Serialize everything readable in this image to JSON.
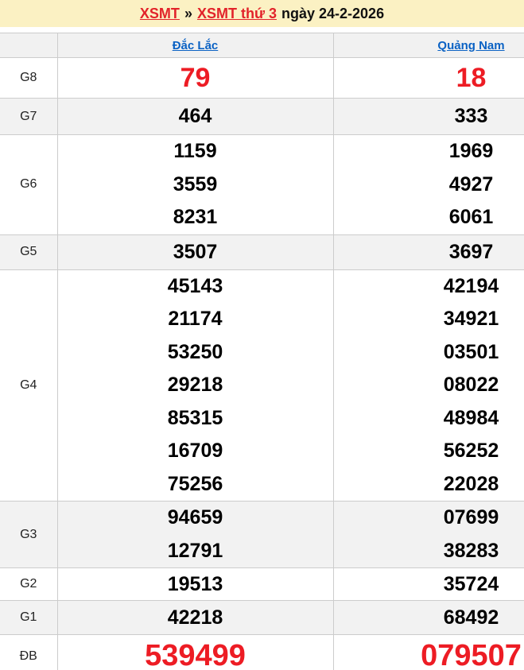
{
  "title": {
    "link1": "XSMT",
    "separator": "»",
    "link2": "XSMT thứ 3",
    "date_text": "ngày 24-2-2026"
  },
  "columns": [
    "Đắc Lắc",
    "Quảng Nam"
  ],
  "prizes": [
    {
      "label": "G8",
      "values": [
        [
          "79"
        ],
        [
          "18"
        ]
      ]
    },
    {
      "label": "G7",
      "values": [
        [
          "464"
        ],
        [
          "333"
        ]
      ]
    },
    {
      "label": "G6",
      "values": [
        [
          "1159",
          "3559",
          "8231"
        ],
        [
          "1969",
          "4927",
          "6061"
        ]
      ]
    },
    {
      "label": "G5",
      "values": [
        [
          "3507"
        ],
        [
          "3697"
        ]
      ]
    },
    {
      "label": "G4",
      "values": [
        [
          "45143",
          "21174",
          "53250",
          "29218",
          "85315",
          "16709",
          "75256"
        ],
        [
          "42194",
          "34921",
          "03501",
          "08022",
          "48984",
          "56252",
          "22028"
        ]
      ]
    },
    {
      "label": "G3",
      "values": [
        [
          "94659",
          "12791"
        ],
        [
          "07699",
          "38283"
        ]
      ]
    },
    {
      "label": "G2",
      "values": [
        [
          "19513"
        ],
        [
          "35724"
        ]
      ]
    },
    {
      "label": "G1",
      "values": [
        [
          "42218"
        ],
        [
          "68492"
        ]
      ]
    },
    {
      "label": "ĐB",
      "values": [
        [
          "539499"
        ],
        [
          "079507"
        ]
      ]
    }
  ],
  "colors": {
    "number_red": "#ed1c24",
    "title_link_red": "#e2232a",
    "province_link_blue": "#0b62c4",
    "title_band_yellow": "#fbf1c3",
    "row_shade_gray": "#f2f2f2",
    "border_gray": "#cccccc"
  }
}
